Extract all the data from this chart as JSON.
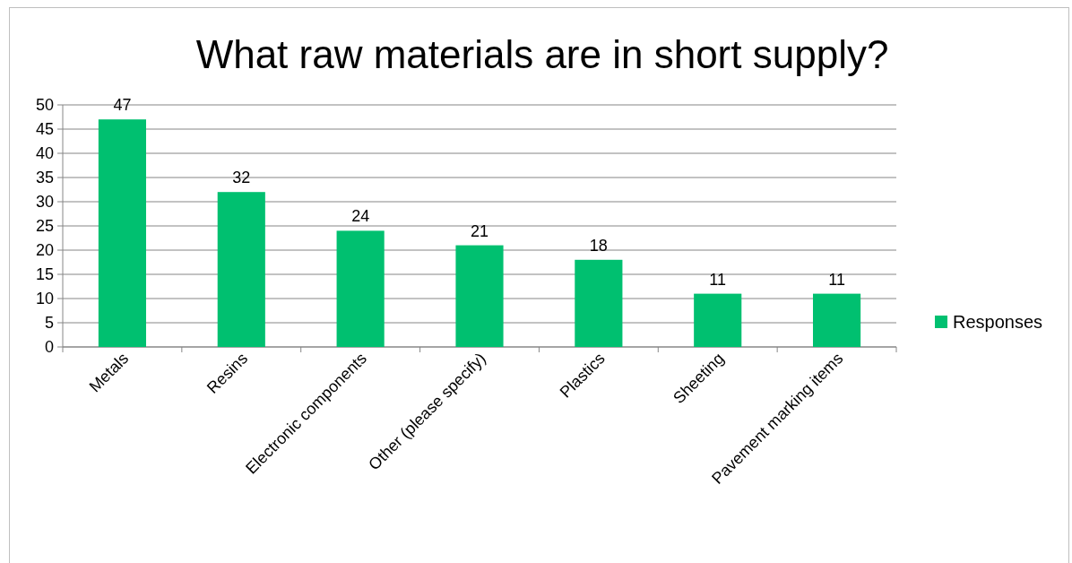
{
  "chart_data": {
    "type": "bar",
    "title": "What raw materials are in short supply?",
    "categories": [
      "Metals",
      "Resins",
      "Electronic components",
      "Other (please specify)",
      "Plastics",
      "Sheeting",
      "Pavement marking items"
    ],
    "series": [
      {
        "name": "Responses",
        "color": "#00c070",
        "values": [
          47,
          32,
          24,
          21,
          18,
          11,
          11
        ]
      }
    ],
    "ylim": [
      0,
      50
    ],
    "yticks": [
      0,
      5,
      10,
      15,
      20,
      25,
      30,
      35,
      40,
      45,
      50
    ],
    "grid": "y",
    "legend": "right",
    "data_labels": true
  }
}
